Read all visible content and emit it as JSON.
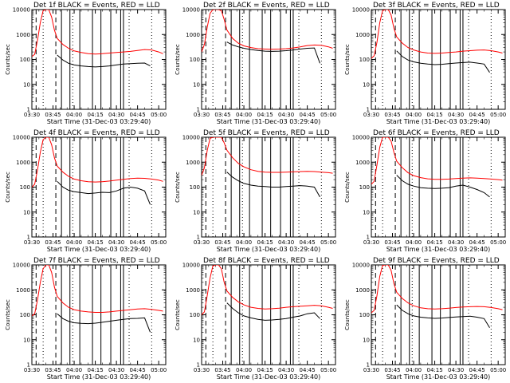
{
  "x_ticks": [
    "03:30",
    "03:45",
    "04:00",
    "04:15",
    "04:30",
    "04:45",
    "05:00"
  ],
  "y_ticks": [
    "1",
    "10",
    "100",
    "1000",
    "10000"
  ],
  "xlabel": "Start Time (31-Dec-03 03:29:40)",
  "ylabel": "Counts/sec",
  "chart_data": [
    {
      "type": "line",
      "title": "Det 1f BLACK = Events, RED = LLD",
      "xlim": [
        0,
        95
      ],
      "ylim": [
        1,
        10000
      ],
      "series": [
        {
          "name": "Events",
          "color": "#000000",
          "x": [
            18,
            22,
            26,
            30,
            35,
            40,
            45,
            50,
            55,
            60,
            65,
            70,
            75,
            80,
            84
          ],
          "y": [
            150,
            95,
            70,
            60,
            55,
            52,
            50,
            52,
            55,
            60,
            65,
            68,
            70,
            72,
            55
          ]
        },
        {
          "name": "LLD",
          "color": "#ff0000",
          "x": [
            0,
            2,
            4,
            6,
            8,
            10,
            12,
            14,
            16,
            18,
            22,
            26,
            30,
            35,
            40,
            45,
            50,
            55,
            60,
            65,
            70,
            75,
            80,
            85,
            90,
            93
          ],
          "y": [
            130,
            160,
            600,
            3000,
            9000,
            10000,
            10000,
            5000,
            1500,
            700,
            400,
            280,
            220,
            190,
            170,
            165,
            170,
            180,
            190,
            200,
            210,
            230,
            250,
            240,
            200,
            170
          ]
        }
      ],
      "dashed_x": [
        3,
        17
      ],
      "dotted_x": [
        8,
        29,
        69,
        85
      ],
      "solid_x": [
        21,
        27,
        34,
        43,
        49,
        56,
        63,
        65
      ]
    },
    {
      "type": "line",
      "title": "Det 2f BLACK = Events, RED = LLD",
      "xlim": [
        0,
        95
      ],
      "ylim": [
        1,
        10000
      ],
      "series": [
        {
          "name": "Events",
          "color": "#000000",
          "x": [
            18,
            22,
            26,
            30,
            35,
            40,
            45,
            50,
            55,
            60,
            65,
            70,
            75,
            80,
            84
          ],
          "y": [
            500,
            380,
            320,
            280,
            250,
            230,
            215,
            210,
            215,
            225,
            240,
            260,
            280,
            290,
            70
          ]
        },
        {
          "name": "LLD",
          "color": "#ff0000",
          "x": [
            0,
            2,
            4,
            6,
            8,
            10,
            12,
            14,
            16,
            18,
            22,
            26,
            30,
            35,
            40,
            45,
            50,
            55,
            60,
            65,
            70,
            75,
            80,
            85,
            90,
            93
          ],
          "y": [
            200,
            400,
            2000,
            7000,
            10000,
            10000,
            10000,
            9000,
            4000,
            1500,
            700,
            450,
            350,
            300,
            270,
            260,
            255,
            260,
            270,
            290,
            320,
            360,
            380,
            370,
            320,
            280
          ]
        }
      ],
      "dashed_x": [
        3,
        17
      ],
      "dotted_x": [
        8,
        29,
        69,
        85
      ],
      "solid_x": [
        21,
        27,
        34,
        43,
        49,
        56,
        63,
        65
      ]
    },
    {
      "type": "line",
      "title": "Det 3f BLACK = Events, RED = LLD",
      "xlim": [
        0,
        95
      ],
      "ylim": [
        1,
        10000
      ],
      "series": [
        {
          "name": "Events",
          "color": "#000000",
          "x": [
            18,
            22,
            26,
            30,
            35,
            40,
            45,
            50,
            55,
            60,
            65,
            70,
            75,
            80,
            84
          ],
          "y": [
            220,
            130,
            95,
            80,
            70,
            65,
            62,
            64,
            68,
            72,
            75,
            78,
            72,
            65,
            30
          ]
        },
        {
          "name": "LLD",
          "color": "#ff0000",
          "x": [
            0,
            2,
            4,
            6,
            8,
            10,
            12,
            14,
            16,
            18,
            22,
            26,
            30,
            35,
            40,
            45,
            50,
            55,
            60,
            65,
            70,
            75,
            80,
            85,
            90,
            93
          ],
          "y": [
            110,
            140,
            500,
            3000,
            9000,
            10000,
            10000,
            6000,
            1800,
            800,
            450,
            300,
            240,
            200,
            180,
            175,
            180,
            190,
            200,
            215,
            225,
            235,
            240,
            225,
            200,
            180
          ]
        }
      ],
      "dashed_x": [
        3,
        17
      ],
      "dotted_x": [
        8,
        29,
        69,
        85
      ],
      "solid_x": [
        21,
        27,
        34,
        43,
        49,
        56,
        63,
        65
      ]
    },
    {
      "type": "line",
      "title": "Det 4f BLACK = Events, RED = LLD",
      "xlim": [
        0,
        95
      ],
      "ylim": [
        1,
        10000
      ],
      "series": [
        {
          "name": "Events",
          "color": "#000000",
          "x": [
            18,
            22,
            26,
            30,
            35,
            40,
            45,
            50,
            55,
            60,
            65,
            70,
            75,
            80,
            84
          ],
          "y": [
            170,
            100,
            75,
            65,
            60,
            55,
            58,
            62,
            60,
            70,
            90,
            100,
            90,
            70,
            20
          ]
        },
        {
          "name": "LLD",
          "color": "#ff0000",
          "x": [
            0,
            2,
            4,
            6,
            8,
            10,
            12,
            14,
            16,
            18,
            22,
            26,
            30,
            35,
            40,
            45,
            50,
            55,
            60,
            65,
            70,
            75,
            80,
            85,
            90,
            93
          ],
          "y": [
            100,
            130,
            500,
            2500,
            8000,
            10000,
            10000,
            5000,
            1500,
            700,
            400,
            270,
            210,
            180,
            165,
            160,
            165,
            175,
            190,
            205,
            220,
            230,
            225,
            210,
            190,
            170
          ]
        }
      ],
      "dashed_x": [
        3,
        17
      ],
      "dotted_x": [
        8,
        29,
        69,
        85
      ],
      "solid_x": [
        21,
        27,
        34,
        43,
        49,
        56,
        63,
        65
      ]
    },
    {
      "type": "line",
      "title": "Det 5f BLACK = Events, RED = LLD",
      "xlim": [
        0,
        95
      ],
      "ylim": [
        1,
        10000
      ],
      "series": [
        {
          "name": "Events",
          "color": "#000000",
          "x": [
            18,
            22,
            26,
            30,
            35,
            40,
            45,
            50,
            55,
            60,
            65,
            70,
            75,
            80,
            84
          ],
          "y": [
            400,
            250,
            180,
            140,
            120,
            110,
            105,
            100,
            100,
            105,
            110,
            115,
            110,
            100,
            40
          ]
        },
        {
          "name": "LLD",
          "color": "#ff0000",
          "x": [
            0,
            2,
            4,
            6,
            8,
            10,
            12,
            14,
            16,
            18,
            22,
            26,
            30,
            35,
            40,
            45,
            50,
            55,
            60,
            65,
            70,
            75,
            80,
            85,
            90,
            93
          ],
          "y": [
            300,
            600,
            3000,
            9000,
            10000,
            10000,
            10000,
            10000,
            6000,
            3000,
            1500,
            900,
            650,
            500,
            430,
            400,
            390,
            390,
            400,
            410,
            420,
            430,
            420,
            400,
            380,
            360
          ]
        }
      ],
      "dashed_x": [
        3,
        17
      ],
      "dotted_x": [
        8,
        29,
        69,
        85
      ],
      "solid_x": [
        21,
        27,
        34,
        43,
        49,
        56,
        63,
        65
      ]
    },
    {
      "type": "line",
      "title": "Det 6f BLACK = Events, RED = LLD",
      "xlim": [
        0,
        95
      ],
      "ylim": [
        1,
        10000
      ],
      "series": [
        {
          "name": "Events",
          "color": "#000000",
          "x": [
            18,
            22,
            26,
            30,
            35,
            40,
            45,
            50,
            55,
            60,
            65,
            70,
            75,
            80,
            84
          ],
          "y": [
            300,
            180,
            130,
            110,
            95,
            90,
            88,
            90,
            95,
            110,
            120,
            100,
            80,
            60,
            40
          ]
        },
        {
          "name": "LLD",
          "color": "#ff0000",
          "x": [
            0,
            2,
            4,
            6,
            8,
            10,
            12,
            14,
            16,
            18,
            22,
            26,
            30,
            35,
            40,
            45,
            50,
            55,
            60,
            65,
            70,
            75,
            80,
            85,
            90,
            93
          ],
          "y": [
            130,
            170,
            800,
            4000,
            10000,
            10000,
            10000,
            7000,
            2500,
            1100,
            600,
            380,
            290,
            240,
            215,
            205,
            205,
            210,
            220,
            230,
            235,
            230,
            220,
            210,
            200,
            190
          ]
        }
      ],
      "dashed_x": [
        3,
        17
      ],
      "dotted_x": [
        8,
        29,
        69,
        85
      ],
      "solid_x": [
        21,
        27,
        34,
        43,
        49,
        56,
        63,
        65
      ]
    },
    {
      "type": "line",
      "title": "Det 7f BLACK = Events, RED = LLD",
      "xlim": [
        0,
        95
      ],
      "ylim": [
        1,
        10000
      ],
      "series": [
        {
          "name": "Events",
          "color": "#000000",
          "x": [
            18,
            22,
            26,
            30,
            35,
            40,
            45,
            50,
            55,
            60,
            65,
            70,
            75,
            80,
            84
          ],
          "y": [
            110,
            70,
            55,
            48,
            45,
            44,
            46,
            50,
            55,
            60,
            65,
            70,
            72,
            75,
            20
          ]
        },
        {
          "name": "LLD",
          "color": "#ff0000",
          "x": [
            0,
            2,
            4,
            6,
            8,
            10,
            12,
            14,
            16,
            18,
            22,
            26,
            30,
            35,
            40,
            45,
            50,
            55,
            60,
            65,
            70,
            75,
            80,
            85,
            90,
            93
          ],
          "y": [
            90,
            110,
            400,
            2000,
            7000,
            10000,
            10000,
            5000,
            1300,
            550,
            300,
            200,
            160,
            140,
            130,
            125,
            125,
            130,
            140,
            150,
            160,
            170,
            175,
            165,
            150,
            140
          ]
        }
      ],
      "dashed_x": [
        3,
        17
      ],
      "dotted_x": [
        8,
        29,
        69,
        85
      ],
      "solid_x": [
        21,
        27,
        34,
        43,
        49,
        56,
        63,
        65
      ]
    },
    {
      "type": "line",
      "title": "Det 8f BLACK = Events, RED = LLD",
      "xlim": [
        0,
        95
      ],
      "ylim": [
        1,
        10000
      ],
      "series": [
        {
          "name": "Events",
          "color": "#000000",
          "x": [
            18,
            22,
            26,
            30,
            35,
            40,
            45,
            50,
            55,
            60,
            65,
            70,
            75,
            80,
            84
          ],
          "y": [
            300,
            180,
            120,
            90,
            75,
            65,
            60,
            62,
            65,
            70,
            80,
            90,
            110,
            120,
            70
          ]
        },
        {
          "name": "LLD",
          "color": "#ff0000",
          "x": [
            0,
            2,
            4,
            6,
            8,
            10,
            12,
            14,
            16,
            18,
            22,
            26,
            30,
            35,
            40,
            45,
            50,
            55,
            60,
            65,
            70,
            75,
            80,
            85,
            90,
            93
          ],
          "y": [
            100,
            130,
            600,
            3000,
            9000,
            10000,
            10000,
            7000,
            2000,
            900,
            500,
            330,
            250,
            200,
            180,
            170,
            175,
            185,
            200,
            210,
            220,
            230,
            240,
            230,
            200,
            180
          ]
        }
      ],
      "dashed_x": [
        3,
        17
      ],
      "dotted_x": [
        8,
        29,
        69,
        85
      ],
      "solid_x": [
        21,
        27,
        34,
        43,
        49,
        56,
        63,
        65
      ]
    },
    {
      "type": "line",
      "title": "Det 9f BLACK = Events, RED = LLD",
      "xlim": [
        0,
        95
      ],
      "ylim": [
        1,
        10000
      ],
      "series": [
        {
          "name": "Events",
          "color": "#000000",
          "x": [
            18,
            22,
            26,
            30,
            35,
            40,
            45,
            50,
            55,
            60,
            65,
            70,
            75,
            80,
            84
          ],
          "y": [
            250,
            150,
            110,
            90,
            80,
            75,
            72,
            74,
            78,
            82,
            85,
            88,
            80,
            70,
            30
          ]
        },
        {
          "name": "LLD",
          "color": "#ff0000",
          "x": [
            0,
            2,
            4,
            6,
            8,
            10,
            12,
            14,
            16,
            18,
            22,
            26,
            30,
            35,
            40,
            45,
            50,
            55,
            60,
            65,
            70,
            75,
            80,
            85,
            90,
            93
          ],
          "y": [
            120,
            150,
            600,
            3500,
            9500,
            10000,
            10000,
            6000,
            1800,
            800,
            450,
            300,
            230,
            190,
            175,
            170,
            175,
            185,
            195,
            205,
            210,
            215,
            210,
            195,
            175,
            160
          ]
        }
      ],
      "dashed_x": [
        3,
        17
      ],
      "dotted_x": [
        8,
        29,
        69,
        85
      ],
      "solid_x": [
        21,
        27,
        34,
        43,
        49,
        56,
        63,
        65
      ]
    }
  ]
}
